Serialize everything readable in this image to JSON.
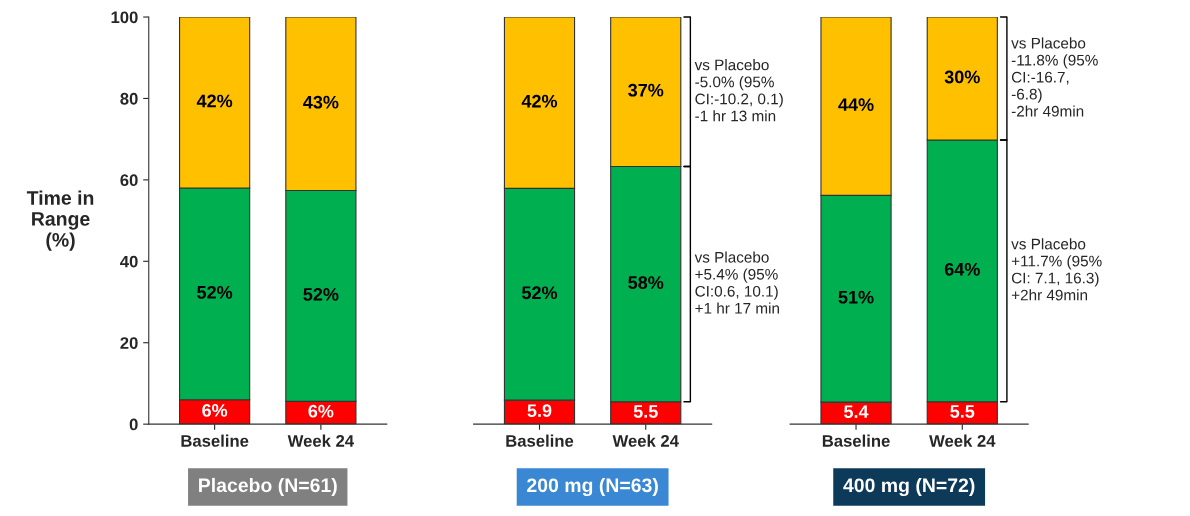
{
  "chart_data": [
    {
      "type": "bar",
      "stacked": true,
      "categories": [
        "Baseline",
        "Week 24"
      ],
      "ylabel": "Time in\nRange\n(%)",
      "xlabel": "Placebo (N=61)",
      "ylim": [
        0,
        100
      ],
      "yticks": [
        0,
        20,
        40,
        60,
        80,
        100
      ],
      "grid": false,
      "legend": false,
      "series": [
        {
          "color": "#ff0000",
          "values": [
            6,
            5.6
          ],
          "value_labels": [
            "6%",
            "6%"
          ]
        },
        {
          "color": "#00b050",
          "values": [
            52,
            51.8
          ],
          "value_labels": [
            "52%",
            "52%"
          ]
        },
        {
          "color": "#ffc000",
          "values": [
            42,
            42.6
          ],
          "value_labels": [
            "42%",
            "43%"
          ]
        }
      ]
    },
    {
      "type": "bar",
      "stacked": true,
      "categories": [
        "Baseline",
        "Week 24"
      ],
      "xlabel": "200 mg (N=63)",
      "ylim": [
        0,
        100
      ],
      "yticks": [
        0,
        20,
        40,
        60,
        80,
        100
      ],
      "tick_labels": "x",
      "grid": false,
      "legend": false,
      "annotations": [
        "vs Placebo\n-5.0% (95%\nCI:-10.2, 0.1)\n-1 hr 13 min",
        "vs Placebo\n+5.4% (95%\nCI:0.6, 10.1)\n+1 hr 17 min"
      ],
      "series": [
        {
          "color": "#ff0000",
          "values": [
            5.9,
            5.5
          ],
          "value_labels": [
            "5.9",
            "5.5"
          ]
        },
        {
          "color": "#00b050",
          "values": [
            52,
            57.8
          ],
          "value_labels": [
            "52%",
            "58%"
          ]
        },
        {
          "color": "#ffc000",
          "values": [
            42.1,
            36.7
          ],
          "value_labels": [
            "42%",
            "37%"
          ]
        }
      ]
    },
    {
      "type": "bar",
      "stacked": true,
      "categories": [
        "Baseline",
        "Week 24"
      ],
      "xlabel": "400 mg (N=72)",
      "ylim": [
        0,
        100
      ],
      "yticks": [
        0,
        20,
        40,
        60,
        80,
        100
      ],
      "tick_labels": "x",
      "grid": false,
      "legend": false,
      "annotations": [
        "vs Placebo\n-11.8% (95%\nCI:-16.7,\n-6.8)\n-2hr 49min",
        "vs Placebo\n+11.7% (95%\nCI: 7.1, 16.3)\n+2hr 49min"
      ],
      "series": [
        {
          "color": "#ff0000",
          "values": [
            5.4,
            5.5
          ],
          "value_labels": [
            "5.4",
            "5.5"
          ]
        },
        {
          "color": "#00b050",
          "values": [
            50.8,
            64.3
          ],
          "value_labels": [
            "51%",
            "64%"
          ]
        },
        {
          "color": "#ffc000",
          "values": [
            43.8,
            30.2
          ],
          "value_labels": [
            "44%",
            "30%"
          ]
        }
      ]
    }
  ]
}
